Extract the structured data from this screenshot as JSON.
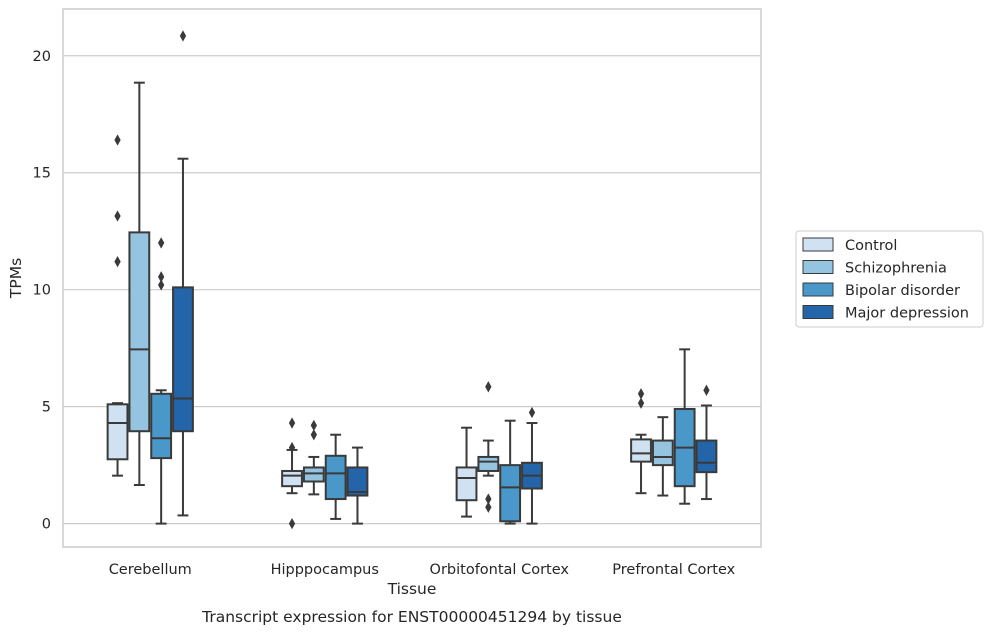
{
  "chart_data": {
    "type": "box",
    "caption": "Transcript expression for ENST00000451294 by tissue",
    "xlabel": "Tissue",
    "ylabel": "TPMs",
    "ylim": [
      -1.0,
      22.0
    ],
    "yticks": [
      0,
      5,
      10,
      15,
      20
    ],
    "grid": "horizontal",
    "legend_position": "right",
    "categories": [
      "Cerebellum",
      "Hipppocampus",
      "Orbitofontal Cortex",
      "Prefrontal Cortex"
    ],
    "series": [
      {
        "name": "Control",
        "color": "#d0e1f2",
        "boxes": [
          {
            "whisker_low": 2.05,
            "q1": 2.75,
            "median": 4.3,
            "q3": 5.1,
            "whisker_high": 5.15,
            "outliers": [
              16.4,
              13.15,
              11.2
            ]
          },
          {
            "whisker_low": 1.3,
            "q1": 1.6,
            "median": 2.05,
            "q3": 2.25,
            "whisker_high": 3.15,
            "outliers": [
              4.3,
              3.25,
              0.0
            ]
          },
          {
            "whisker_low": 0.3,
            "q1": 1.0,
            "median": 1.95,
            "q3": 2.4,
            "whisker_high": 4.1,
            "outliers": []
          },
          {
            "whisker_low": 1.3,
            "q1": 2.65,
            "median": 3.0,
            "q3": 3.6,
            "whisker_high": 3.8,
            "outliers": [
              5.55,
              5.15
            ]
          }
        ]
      },
      {
        "name": "Schizophrenia",
        "color": "#94c4df",
        "boxes": [
          {
            "whisker_low": 1.65,
            "q1": 3.95,
            "median": 7.45,
            "q3": 12.45,
            "whisker_high": 18.85,
            "outliers": []
          },
          {
            "whisker_low": 1.25,
            "q1": 1.8,
            "median": 2.15,
            "q3": 2.4,
            "whisker_high": 2.85,
            "outliers": [
              4.2,
              3.8
            ]
          },
          {
            "whisker_low": 2.05,
            "q1": 2.25,
            "median": 2.65,
            "q3": 2.85,
            "whisker_high": 3.55,
            "outliers": [
              5.85,
              1.05,
              0.7
            ]
          },
          {
            "whisker_low": 1.2,
            "q1": 2.5,
            "median": 2.85,
            "q3": 3.55,
            "whisker_high": 4.55,
            "outliers": []
          }
        ]
      },
      {
        "name": "Bipolar disorder",
        "color": "#4a98c9",
        "boxes": [
          {
            "whisker_low": 0.0,
            "q1": 2.8,
            "median": 3.65,
            "q3": 5.55,
            "whisker_high": 5.7,
            "outliers": [
              12.0,
              10.55,
              10.2
            ]
          },
          {
            "whisker_low": 0.2,
            "q1": 1.05,
            "median": 2.15,
            "q3": 2.9,
            "whisker_high": 3.8,
            "outliers": []
          },
          {
            "whisker_low": 0.0,
            "q1": 0.1,
            "median": 1.55,
            "q3": 2.5,
            "whisker_high": 4.4,
            "outliers": []
          },
          {
            "whisker_low": 0.85,
            "q1": 1.6,
            "median": 3.25,
            "q3": 4.9,
            "whisker_high": 7.45,
            "outliers": []
          }
        ]
      },
      {
        "name": "Major depression",
        "color": "#2464a8",
        "boxes": [
          {
            "whisker_low": 0.35,
            "q1": 3.95,
            "median": 5.35,
            "q3": 10.1,
            "whisker_high": 15.6,
            "outliers": [
              20.85
            ]
          },
          {
            "whisker_low": 0.0,
            "q1": 1.2,
            "median": 1.35,
            "q3": 2.4,
            "whisker_high": 3.25,
            "outliers": []
          },
          {
            "whisker_low": 0.0,
            "q1": 1.5,
            "median": 2.05,
            "q3": 2.6,
            "whisker_high": 4.3,
            "outliers": [
              4.75
            ]
          },
          {
            "whisker_low": 1.05,
            "q1": 2.2,
            "median": 2.6,
            "q3": 3.55,
            "whisker_high": 5.05,
            "outliers": [
              5.7
            ]
          }
        ]
      }
    ]
  }
}
